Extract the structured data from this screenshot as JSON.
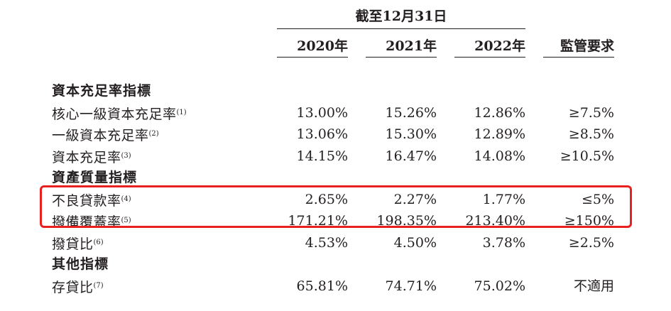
{
  "header": {
    "period": "截至12月31日",
    "columns": [
      "2020年",
      "2021年",
      "2022年"
    ],
    "regulatory": "監管要求"
  },
  "rows": [
    {
      "type": "section",
      "label": "資本充足率指標"
    },
    {
      "type": "data",
      "label": "核心一級資本充足率",
      "note": "(1)",
      "values": [
        "13.00%",
        "15.26%",
        "12.86%"
      ],
      "requirement": "≥7.5%"
    },
    {
      "type": "data",
      "label": "一級資本充足率",
      "note": "(2)",
      "values": [
        "13.06%",
        "15.30%",
        "12.89%"
      ],
      "requirement": "≥8.5%"
    },
    {
      "type": "data",
      "label": "資本充足率",
      "note": "(3)",
      "values": [
        "14.15%",
        "16.47%",
        "14.08%"
      ],
      "requirement": "≥10.5%"
    },
    {
      "type": "section",
      "label": "資產質量指標"
    },
    {
      "type": "data",
      "label": "不良貸款率",
      "note": "(4)",
      "values": [
        "2.65%",
        "2.27%",
        "1.77%"
      ],
      "requirement": "≤5%"
    },
    {
      "type": "data",
      "label": "撥備覆蓋率",
      "note": "(5)",
      "values": [
        "171.21%",
        "198.35%",
        "213.40%"
      ],
      "requirement": "≥150%"
    },
    {
      "type": "data",
      "label": "撥貸比",
      "note": "(6)",
      "values": [
        "4.53%",
        "4.50%",
        "3.78%"
      ],
      "requirement": "≥2.5%"
    },
    {
      "type": "section",
      "label": "其他指標"
    },
    {
      "type": "data",
      "label": "存貸比",
      "note": "(7)",
      "values": [
        "65.81%",
        "74.71%",
        "75.02%"
      ],
      "requirement": "不適用"
    }
  ],
  "highlight": {
    "color": "#e8201f"
  }
}
